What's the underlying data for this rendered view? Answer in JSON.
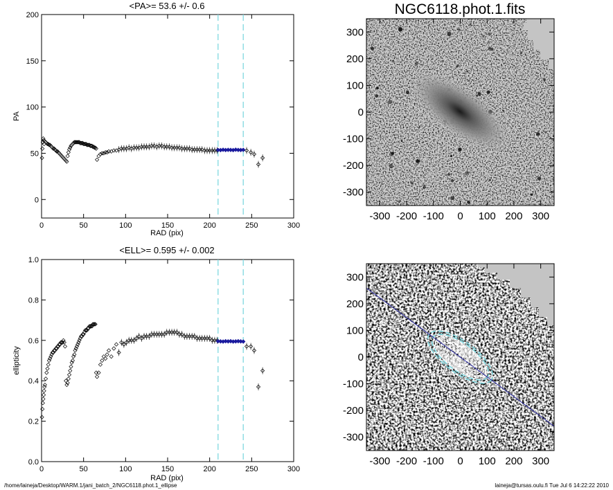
{
  "footer": {
    "path": "/home/laineja/Desktop/WARM.1/jani_batch_2/NGC6118.phot.1_ellipse",
    "stamp": "laineja@tursas.oulu.fi  Tue Jul  6 14:22:22 2010"
  },
  "colors": {
    "fit_band": "#7fd8e0",
    "mean_points": "#1a1a9e",
    "points": "#000000",
    "image_mid": "#bdbdbd"
  },
  "chart_data": [
    {
      "type": "scatter",
      "title": "<PA>=  53.6 +/-   0.6",
      "xlabel": "RAD (pix)",
      "ylabel": "PA",
      "xlim": [
        0,
        300
      ],
      "ylim": [
        -20,
        200
      ],
      "xticks": [
        0,
        50,
        100,
        150,
        200,
        250,
        300
      ],
      "yticks": [
        0,
        50,
        100,
        150,
        200
      ],
      "grid": false,
      "fit_range": [
        210,
        240
      ],
      "series": [
        {
          "x": [
            0.5,
            1,
            1.5,
            2,
            2.5,
            3,
            4,
            5,
            6,
            7,
            8,
            9,
            10,
            11,
            12,
            13,
            14,
            15,
            16,
            17,
            18,
            19,
            20,
            21,
            22,
            23,
            24,
            25,
            26,
            27,
            28,
            29,
            30,
            31,
            32,
            33,
            34,
            35,
            36,
            37,
            38,
            39,
            40,
            41,
            42,
            43,
            44,
            45,
            46,
            47,
            48,
            49,
            50,
            51,
            52,
            53,
            54,
            55,
            56,
            57,
            58,
            59,
            60,
            61,
            62,
            63,
            64,
            65,
            66,
            68,
            70,
            72,
            74,
            76,
            78,
            80,
            83,
            86,
            89,
            92,
            95,
            98,
            101,
            104,
            107,
            110,
            113,
            116,
            119,
            122,
            125,
            128,
            131,
            134,
            137,
            140,
            143,
            146,
            149,
            152,
            155,
            158,
            161,
            164,
            167,
            170,
            173,
            176,
            179,
            182,
            185,
            188,
            191,
            194,
            197,
            200,
            203,
            206,
            209,
            244,
            249,
            253,
            258,
            263
          ],
          "y": [
            45,
            55,
            62,
            66,
            64,
            60,
            63,
            62,
            61,
            60,
            60,
            59,
            59,
            58,
            57,
            56,
            55,
            55,
            54,
            53,
            52,
            52,
            51,
            50,
            49,
            48,
            47,
            46,
            45,
            44,
            43,
            42,
            41,
            47,
            51,
            54,
            56,
            58,
            59,
            60,
            61,
            62,
            62,
            62,
            62,
            62,
            62,
            62,
            61,
            61,
            61,
            61,
            60,
            60,
            60,
            60,
            59,
            59,
            59,
            59,
            58,
            58,
            58,
            57,
            57,
            56,
            56,
            55,
            43,
            47,
            49,
            50,
            50,
            51,
            51,
            52,
            52,
            53,
            53,
            54,
            55,
            55,
            55,
            56,
            55,
            56,
            56,
            56,
            57,
            57,
            57,
            57,
            58,
            58,
            57,
            58,
            58,
            57,
            57,
            57,
            56,
            56,
            56,
            56,
            55,
            55,
            55,
            55,
            54,
            54,
            54,
            54,
            54,
            53,
            53,
            53,
            53,
            53,
            53,
            53,
            51,
            49,
            38,
            45
          ]
        },
        {
          "name": "",
          "x": [
            210,
            213,
            216,
            219,
            222,
            225,
            228,
            231,
            234,
            237,
            240
          ],
          "y": [
            53.6,
            53.4,
            53.8,
            53.5,
            53.7,
            53.6,
            53.4,
            53.9,
            53.6,
            53.5,
            53.7
          ]
        }
      ]
    },
    {
      "type": "scatter",
      "title": "<ELL>= 0.595 +/-  0.002",
      "xlabel": "RAD (pix)",
      "ylabel": "ellipticity",
      "xlim": [
        0,
        300
      ],
      "ylim": [
        0.0,
        1.0
      ],
      "xticks": [
        0,
        50,
        100,
        150,
        200,
        250,
        300
      ],
      "yticks": [
        0.0,
        0.2,
        0.4,
        0.6,
        0.8,
        1.0
      ],
      "grid": false,
      "fit_range": [
        210,
        240
      ],
      "series": [
        {
          "x": [
            0.5,
            1,
            1.5,
            2,
            2.5,
            3,
            3.5,
            4,
            5,
            6,
            7,
            8,
            9,
            10,
            11,
            12,
            13,
            14,
            15,
            16,
            17,
            18,
            19,
            20,
            21,
            22,
            23,
            24,
            25,
            26,
            27,
            28,
            29,
            30,
            31,
            32,
            33,
            34,
            35,
            36,
            37,
            38,
            39,
            40,
            41,
            42,
            43,
            44,
            45,
            46,
            47,
            48,
            49,
            50,
            51,
            52,
            53,
            54,
            55,
            56,
            57,
            58,
            59,
            60,
            61,
            62,
            63,
            64,
            65,
            66,
            68,
            70,
            72,
            74,
            76,
            78,
            80,
            83,
            86,
            89,
            92,
            95,
            98,
            101,
            104,
            107,
            110,
            113,
            116,
            119,
            122,
            125,
            128,
            131,
            134,
            137,
            140,
            143,
            146,
            149,
            152,
            155,
            158,
            161,
            164,
            167,
            170,
            173,
            176,
            179,
            182,
            185,
            188,
            191,
            194,
            197,
            200,
            203,
            206,
            209,
            244,
            249,
            253,
            258,
            263
          ],
          "y": [
            0.22,
            0.26,
            0.29,
            0.31,
            0.33,
            0.35,
            0.37,
            0.38,
            0.41,
            0.44,
            0.46,
            0.48,
            0.5,
            0.51,
            0.52,
            0.53,
            0.54,
            0.54,
            0.55,
            0.55,
            0.56,
            0.56,
            0.57,
            0.57,
            0.58,
            0.58,
            0.59,
            0.59,
            0.59,
            0.6,
            0.59,
            0.57,
            0.4,
            0.38,
            0.39,
            0.41,
            0.43,
            0.45,
            0.47,
            0.49,
            0.5,
            0.52,
            0.53,
            0.55,
            0.56,
            0.57,
            0.58,
            0.59,
            0.6,
            0.61,
            0.62,
            0.62,
            0.63,
            0.63,
            0.64,
            0.65,
            0.65,
            0.65,
            0.66,
            0.66,
            0.67,
            0.67,
            0.67,
            0.67,
            0.68,
            0.68,
            0.68,
            0.68,
            0.44,
            0.42,
            0.44,
            0.48,
            0.5,
            0.52,
            0.51,
            0.53,
            0.55,
            0.52,
            0.56,
            0.58,
            0.54,
            0.59,
            0.58,
            0.59,
            0.6,
            0.6,
            0.6,
            0.61,
            0.62,
            0.61,
            0.62,
            0.62,
            0.62,
            0.63,
            0.63,
            0.63,
            0.63,
            0.63,
            0.63,
            0.64,
            0.64,
            0.64,
            0.64,
            0.64,
            0.63,
            0.63,
            0.62,
            0.62,
            0.62,
            0.62,
            0.62,
            0.61,
            0.61,
            0.61,
            0.61,
            0.61,
            0.61,
            0.6,
            0.6,
            0.6,
            0.57,
            0.57,
            0.55,
            0.37,
            0.45
          ]
        },
        {
          "name": "",
          "x": [
            210,
            213,
            216,
            219,
            222,
            225,
            228,
            231,
            234,
            237,
            240
          ],
          "y": [
            0.596,
            0.595,
            0.594,
            0.596,
            0.595,
            0.596,
            0.594,
            0.595,
            0.596,
            0.595,
            0.594
          ]
        }
      ]
    },
    {
      "type": "heatmap",
      "title": "NGC6118.phot.1.fits",
      "xlim": [
        -350,
        350
      ],
      "ylim": [
        -350,
        350
      ],
      "xticks": [
        -300,
        -200,
        -100,
        0,
        100,
        200,
        300
      ],
      "yticks": [
        -300,
        -200,
        -100,
        0,
        100,
        200,
        300
      ],
      "galaxy": {
        "pa_deg": 53.6,
        "ellipticity": 0.595
      }
    },
    {
      "type": "heatmap",
      "title": "",
      "xlim": [
        -350,
        350
      ],
      "ylim": [
        -350,
        350
      ],
      "xticks": [
        -300,
        -200,
        -100,
        0,
        100,
        200,
        300
      ],
      "yticks": [
        -300,
        -200,
        -100,
        0,
        100,
        200,
        300
      ],
      "ellipse_radii": [
        20,
        35,
        50,
        65,
        80,
        95,
        110,
        125,
        140,
        155,
        170,
        185,
        200
      ],
      "fit_radii": [
        210,
        240
      ],
      "major_axis_pa_deg": 53.6,
      "ellipticity": 0.595
    }
  ]
}
